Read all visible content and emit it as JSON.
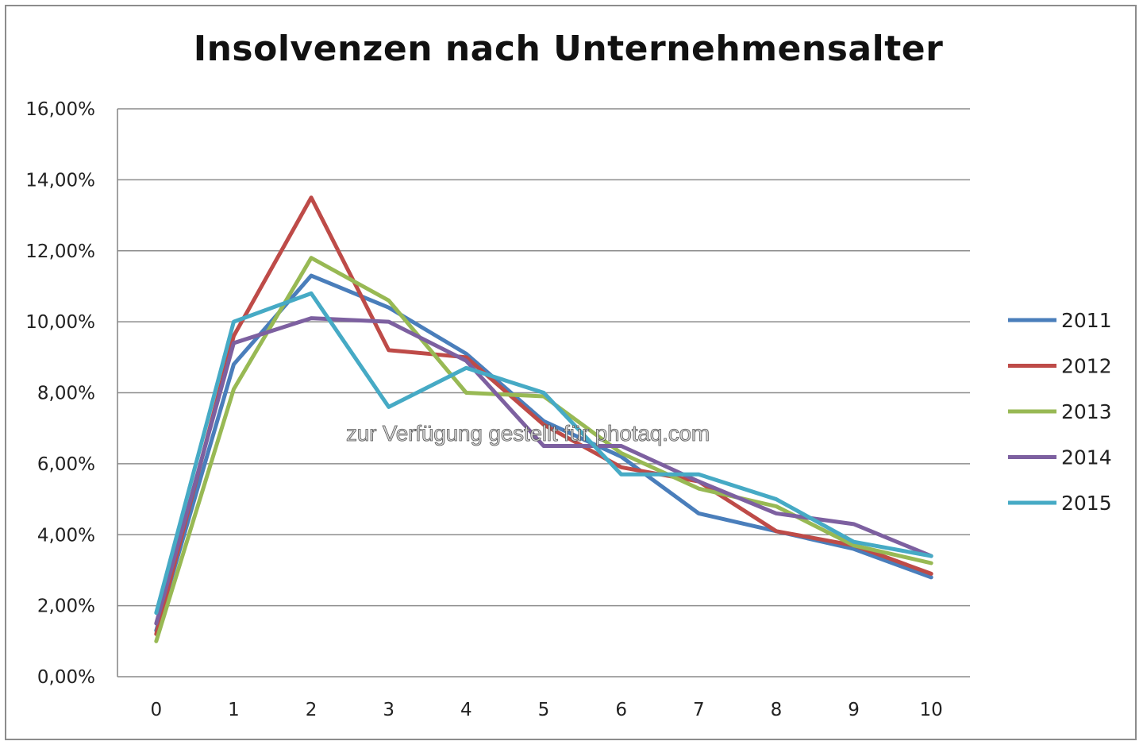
{
  "chart_data": {
    "type": "line",
    "title": "Insolvenzen nach Unternehmensalter",
    "xlabel": "",
    "ylabel": "",
    "categories": [
      "0",
      "1",
      "2",
      "3",
      "4",
      "5",
      "6",
      "7",
      "8",
      "9",
      "10"
    ],
    "y_tick_labels": [
      "0,00%",
      "2,00%",
      "4,00%",
      "6,00%",
      "8,00%",
      "10,00%",
      "12,00%",
      "14,00%",
      "16,00%"
    ],
    "ylim": [
      0,
      16
    ],
    "grid": true,
    "legend_position": "right",
    "series": [
      {
        "name": "2011",
        "color": "#4a7ebb",
        "values": [
          1.3,
          8.8,
          11.3,
          10.4,
          9.1,
          7.2,
          6.2,
          4.6,
          4.1,
          3.6,
          2.8
        ]
      },
      {
        "name": "2012",
        "color": "#be4b48",
        "values": [
          1.2,
          9.6,
          13.5,
          9.2,
          9.0,
          7.1,
          5.9,
          5.5,
          4.1,
          3.7,
          2.9
        ]
      },
      {
        "name": "2013",
        "color": "#98b954",
        "values": [
          1.0,
          8.1,
          11.8,
          10.6,
          8.0,
          7.9,
          6.3,
          5.3,
          4.8,
          3.7,
          3.2
        ]
      },
      {
        "name": "2014",
        "color": "#7d60a0",
        "values": [
          1.5,
          9.4,
          10.1,
          10.0,
          8.9,
          6.5,
          6.5,
          5.5,
          4.6,
          4.3,
          3.4
        ]
      },
      {
        "name": "2015",
        "color": "#46aac5",
        "values": [
          1.8,
          10.0,
          10.8,
          7.6,
          8.7,
          8.0,
          5.7,
          5.7,
          5.0,
          3.8,
          3.4
        ]
      }
    ]
  },
  "watermark": "zur Verfügung gestellt für photaq.com"
}
